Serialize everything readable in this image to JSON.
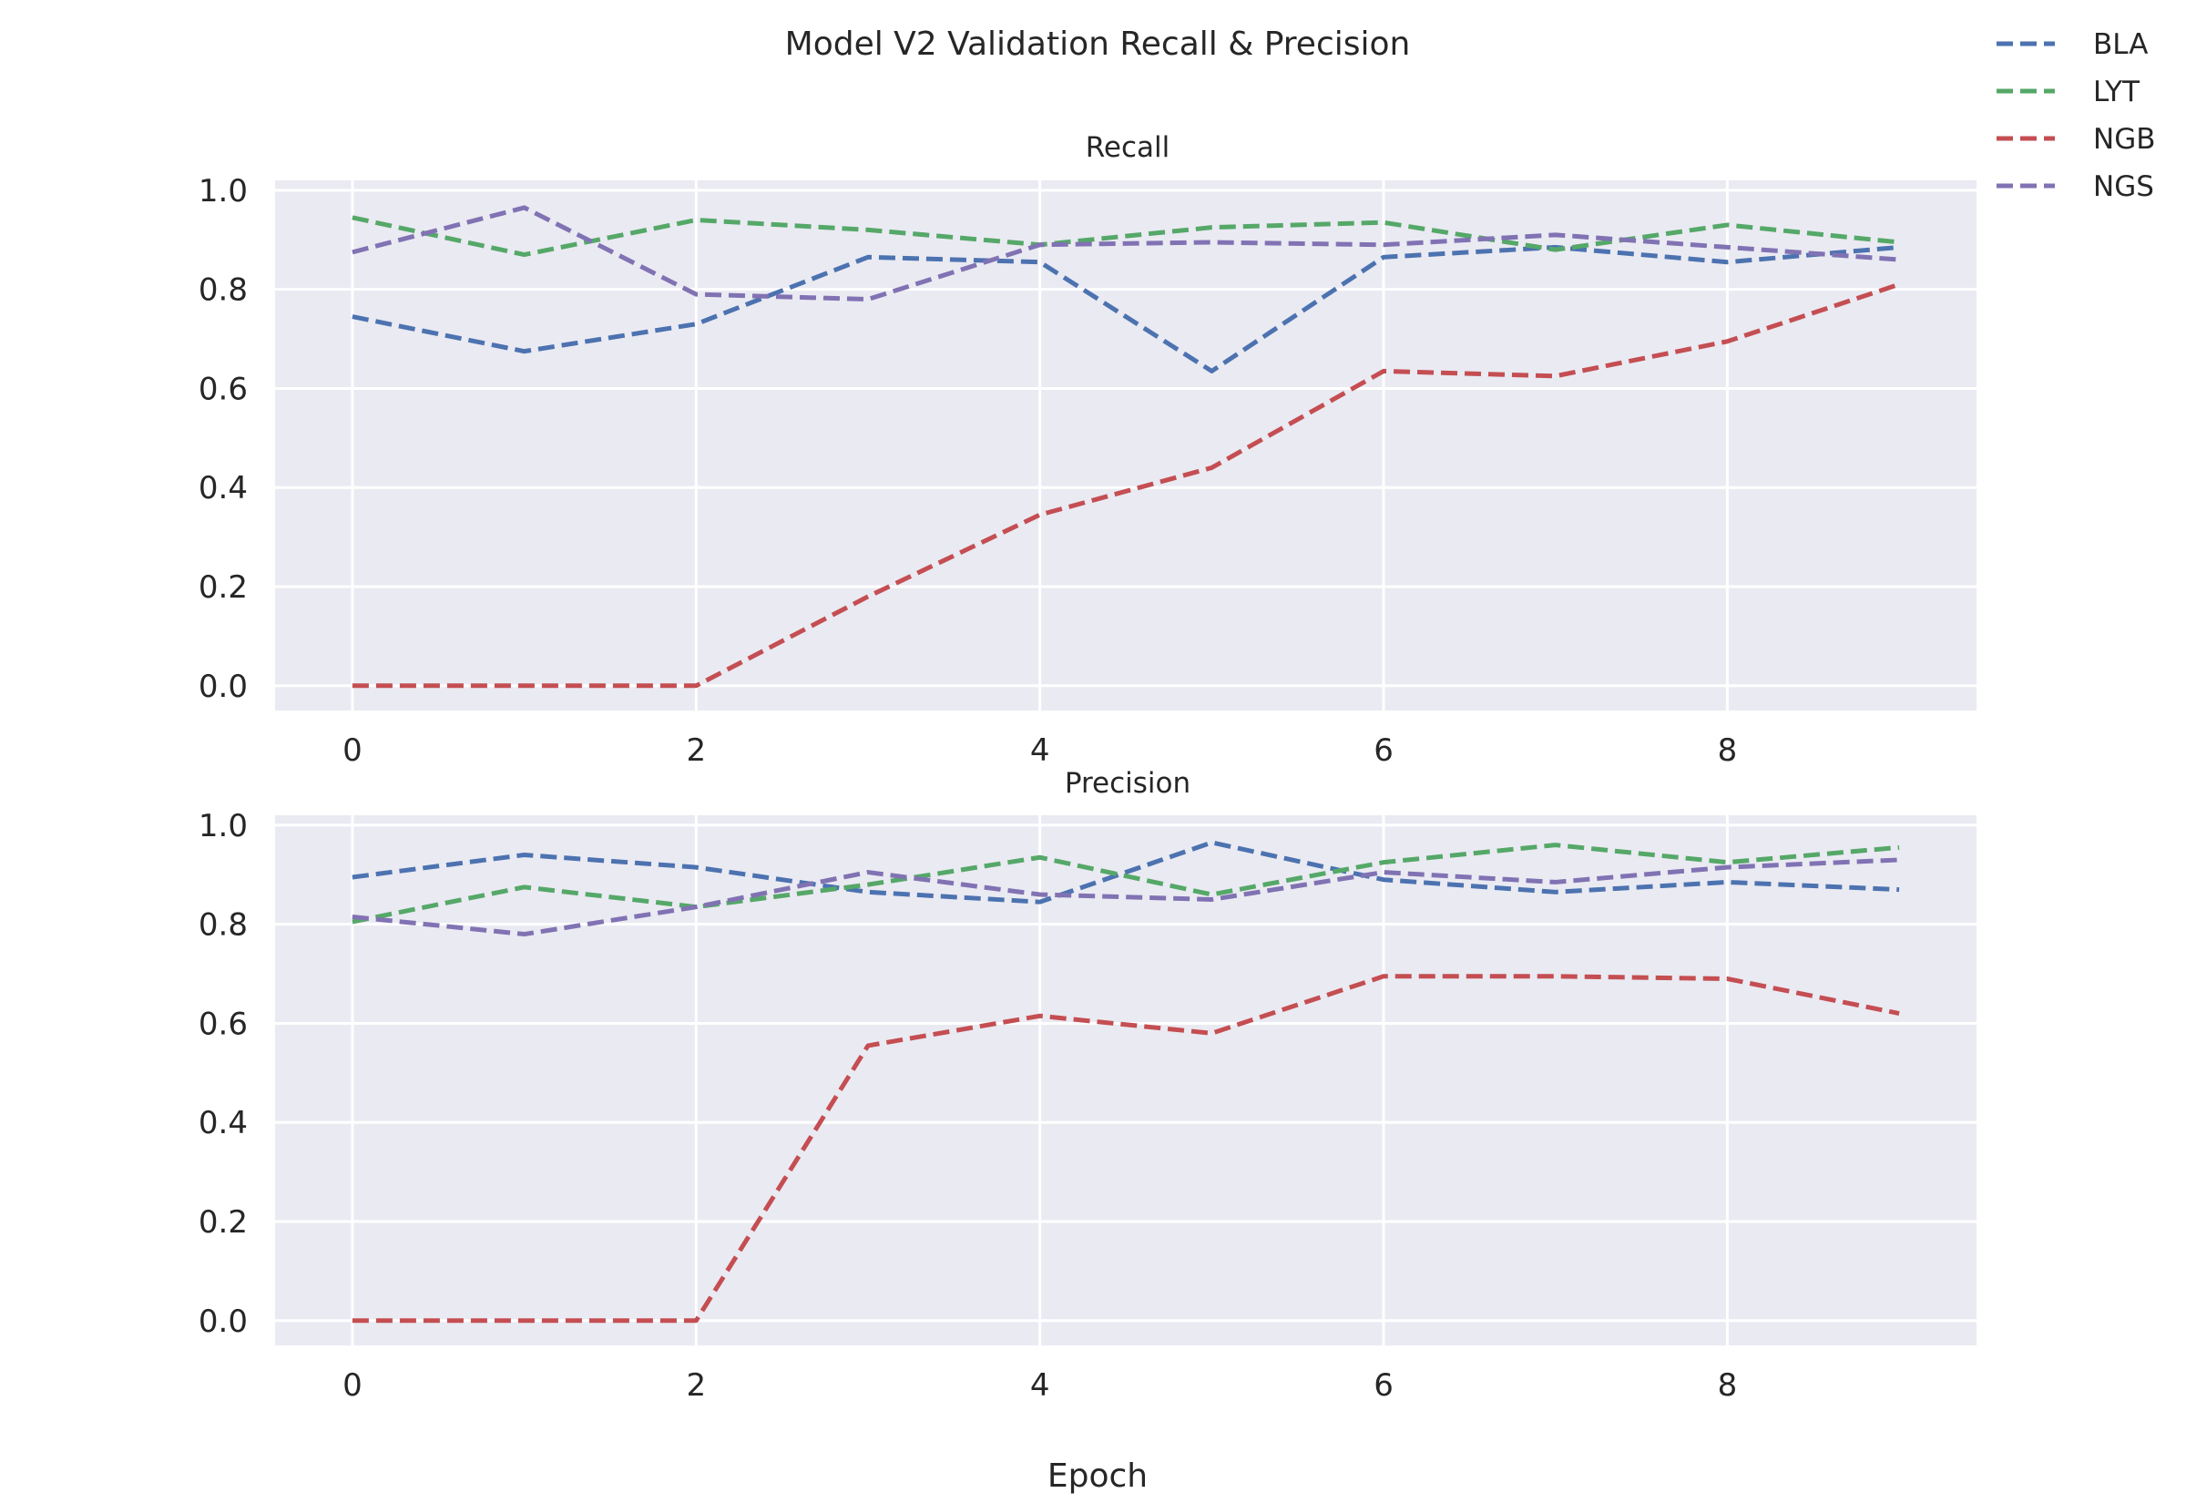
{
  "chart_data": {
    "type": "line",
    "title": "Model V2 Validation Recall & Precision",
    "xlabel": "Epoch",
    "legend_position": "top-right",
    "grid": true,
    "line_style": "dashed",
    "x": [
      0,
      1,
      2,
      3,
      4,
      5,
      6,
      7,
      8,
      9
    ],
    "xticks": [
      "0",
      "2",
      "4",
      "6",
      "8"
    ],
    "yticks": [
      "0.0",
      "0.2",
      "0.4",
      "0.6",
      "0.8",
      "1.0"
    ],
    "ylim": [
      -0.05,
      1.02
    ],
    "xlim": [
      -0.45,
      9.45
    ],
    "legend": [
      {
        "name": "BLA",
        "color": "#4c72b0"
      },
      {
        "name": "LYT",
        "color": "#55a868"
      },
      {
        "name": "NGB",
        "color": "#c44e52"
      },
      {
        "name": "NGS",
        "color": "#8172b3"
      }
    ],
    "panels": [
      {
        "subtitle": "Recall",
        "series": [
          {
            "name": "BLA",
            "color": "#4c72b0",
            "values": [
              0.745,
              0.675,
              0.73,
              0.865,
              0.855,
              0.635,
              0.865,
              0.885,
              0.855,
              0.885
            ]
          },
          {
            "name": "LYT",
            "color": "#55a868",
            "values": [
              0.945,
              0.87,
              0.94,
              0.92,
              0.89,
              0.925,
              0.935,
              0.88,
              0.93,
              0.895
            ]
          },
          {
            "name": "NGB",
            "color": "#c44e52",
            "values": [
              0.0,
              0.0,
              0.0,
              0.18,
              0.345,
              0.44,
              0.635,
              0.625,
              0.695,
              0.81
            ]
          },
          {
            "name": "NGS",
            "color": "#8172b3",
            "values": [
              0.875,
              0.965,
              0.79,
              0.78,
              0.89,
              0.895,
              0.89,
              0.91,
              0.885,
              0.86
            ]
          }
        ]
      },
      {
        "subtitle": "Precision",
        "series": [
          {
            "name": "BLA",
            "color": "#4c72b0",
            "values": [
              0.895,
              0.94,
              0.915,
              0.865,
              0.845,
              0.965,
              0.89,
              0.865,
              0.885,
              0.87
            ]
          },
          {
            "name": "LYT",
            "color": "#55a868",
            "values": [
              0.805,
              0.875,
              0.835,
              0.88,
              0.935,
              0.86,
              0.925,
              0.96,
              0.925,
              0.955
            ]
          },
          {
            "name": "NGB",
            "color": "#c44e52",
            "values": [
              0.0,
              0.0,
              0.0,
              0.555,
              0.615,
              0.58,
              0.695,
              0.695,
              0.69,
              0.62
            ]
          },
          {
            "name": "NGS",
            "color": "#8172b3",
            "values": [
              0.815,
              0.78,
              0.835,
              0.905,
              0.86,
              0.85,
              0.905,
              0.885,
              0.915,
              0.93
            ]
          }
        ]
      }
    ]
  }
}
